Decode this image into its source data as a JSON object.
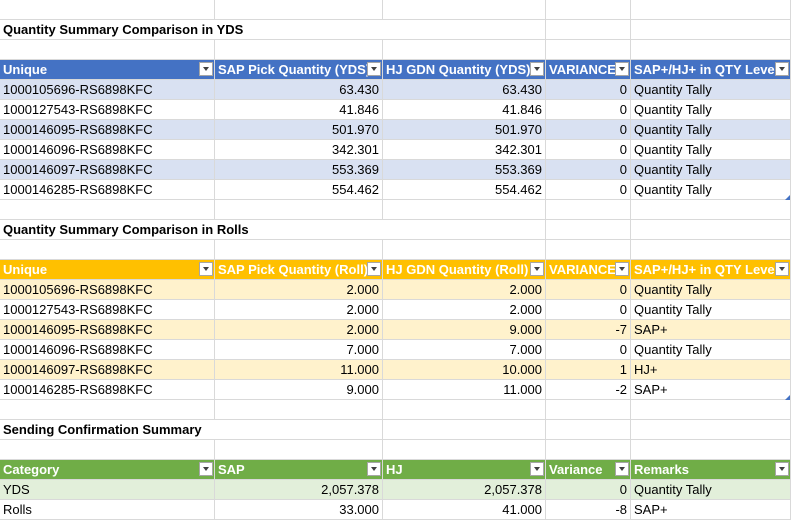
{
  "yds_section": {
    "title": "Quantity Summary Comparison in YDS",
    "headers": [
      "Unique",
      "SAP Pick Quantity (YDS)",
      "HJ GDN Quantity (YDS)",
      "VARIANCE",
      "SAP+/HJ+ in QTY Level"
    ],
    "rows": [
      [
        "1000105696-RS6898KFC",
        "63.430",
        "63.430",
        "0",
        "Quantity Tally"
      ],
      [
        "1000127543-RS6898KFC",
        "41.846",
        "41.846",
        "0",
        "Quantity Tally"
      ],
      [
        "1000146095-RS6898KFC",
        "501.970",
        "501.970",
        "0",
        "Quantity Tally"
      ],
      [
        "1000146096-RS6898KFC",
        "342.301",
        "342.301",
        "0",
        "Quantity Tally"
      ],
      [
        "1000146097-RS6898KFC",
        "553.369",
        "553.369",
        "0",
        "Quantity Tally"
      ],
      [
        "1000146285-RS6898KFC",
        "554.462",
        "554.462",
        "0",
        "Quantity Tally"
      ]
    ]
  },
  "rolls_section": {
    "title": "Quantity Summary Comparison in Rolls",
    "headers": [
      "Unique",
      "SAP Pick Quantity (Roll)",
      "HJ GDN Quantity (Roll)",
      "VARIANCE",
      "SAP+/HJ+ in QTY Level"
    ],
    "rows": [
      [
        "1000105696-RS6898KFC",
        "2.000",
        "2.000",
        "0",
        "Quantity Tally"
      ],
      [
        "1000127543-RS6898KFC",
        "2.000",
        "2.000",
        "0",
        "Quantity Tally"
      ],
      [
        "1000146095-RS6898KFC",
        "2.000",
        "9.000",
        "-7",
        "SAP+"
      ],
      [
        "1000146096-RS6898KFC",
        "7.000",
        "7.000",
        "0",
        "Quantity Tally"
      ],
      [
        "1000146097-RS6898KFC",
        "11.000",
        "10.000",
        "1",
        "HJ+"
      ],
      [
        "1000146285-RS6898KFC",
        "9.000",
        "11.000",
        "-2",
        "SAP+"
      ]
    ]
  },
  "confirmation_section": {
    "title": "Sending Confirmation Summary",
    "headers": [
      "Category",
      "SAP",
      "HJ",
      "Variance",
      "Remarks"
    ],
    "rows": [
      [
        "YDS",
        "2,057.378",
        "2,057.378",
        "0",
        "Quantity Tally"
      ],
      [
        "Rolls",
        "33.000",
        "41.000",
        "-8",
        "SAP+"
      ]
    ]
  },
  "colors": {
    "blue_header": "#4472c4",
    "blue_band": "#d9e1f2",
    "orange_header": "#ffc000",
    "orange_band": "#fff2cc",
    "green_header": "#70ad47",
    "green_band": "#e2efda"
  },
  "icons": {
    "filter": "filter-dropdown-icon",
    "resize": "table-resize-handle-icon"
  }
}
